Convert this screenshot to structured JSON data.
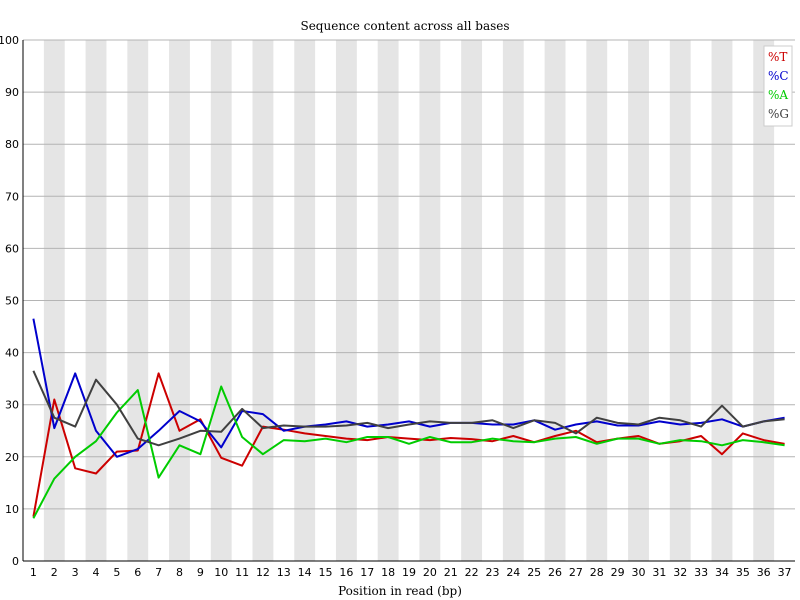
{
  "chart_data": {
    "type": "line",
    "title": "Sequence content across all bases",
    "xlabel": "Position in read (bp)",
    "ylabel": "",
    "ylim": [
      0,
      100
    ],
    "yticks": [
      0,
      10,
      20,
      30,
      40,
      50,
      60,
      70,
      80,
      90,
      100
    ],
    "categories": [
      "1",
      "2",
      "3",
      "4",
      "5",
      "6",
      "7",
      "8",
      "9",
      "10",
      "11",
      "12",
      "13",
      "14",
      "15",
      "16",
      "17",
      "18",
      "19",
      "20",
      "21",
      "22",
      "23",
      "24",
      "25",
      "26",
      "27",
      "28",
      "29",
      "30",
      "31",
      "32",
      "33",
      "34",
      "35",
      "36",
      "37"
    ],
    "grid": true,
    "legend_position": "top-right",
    "series": [
      {
        "name": "%T",
        "color": "#cc0000",
        "values": [
          8.5,
          31.0,
          17.8,
          16.8,
          21.0,
          21.2,
          36.0,
          25.0,
          27.2,
          19.8,
          18.3,
          25.8,
          25.2,
          24.5,
          24.0,
          23.5,
          23.2,
          23.8,
          23.5,
          23.2,
          23.6,
          23.4,
          23.0,
          24.0,
          22.8,
          24.0,
          25.0,
          22.8,
          23.5,
          24.0,
          22.5,
          23.0,
          24.0,
          20.5,
          24.5,
          23.2,
          22.5
        ]
      },
      {
        "name": "%C",
        "color": "#0000cc",
        "values": [
          46.5,
          25.5,
          36.0,
          25.0,
          20.0,
          21.5,
          25.0,
          28.8,
          26.8,
          21.8,
          28.8,
          28.2,
          25.0,
          25.8,
          26.2,
          26.8,
          25.8,
          26.2,
          26.8,
          25.8,
          26.5,
          26.5,
          26.2,
          26.2,
          27.0,
          25.2,
          26.2,
          26.8,
          26.0,
          26.0,
          26.8,
          26.2,
          26.5,
          27.2,
          25.8,
          26.8,
          27.5
        ]
      },
      {
        "name": "%A",
        "color": "#00cc00",
        "values": [
          8.2,
          15.8,
          20.0,
          23.0,
          28.5,
          32.8,
          16.0,
          22.2,
          20.5,
          33.5,
          23.8,
          20.5,
          23.2,
          23.0,
          23.5,
          22.8,
          23.8,
          23.8,
          22.5,
          23.8,
          22.8,
          22.8,
          23.5,
          23.0,
          22.8,
          23.5,
          23.8,
          22.5,
          23.5,
          23.5,
          22.5,
          23.2,
          23.0,
          22.2,
          23.2,
          22.8,
          22.2
        ]
      },
      {
        "name": "%G",
        "color": "#404040",
        "values": [
          36.5,
          27.5,
          25.8,
          34.8,
          30.0,
          23.5,
          22.2,
          23.5,
          25.0,
          24.8,
          29.2,
          25.5,
          26.0,
          25.8,
          25.8,
          26.0,
          26.5,
          25.5,
          26.2,
          26.8,
          26.5,
          26.5,
          27.0,
          25.5,
          27.0,
          26.5,
          24.5,
          27.5,
          26.5,
          26.2,
          27.5,
          27.0,
          25.8,
          29.8,
          25.8,
          26.8,
          27.2
        ]
      }
    ]
  }
}
